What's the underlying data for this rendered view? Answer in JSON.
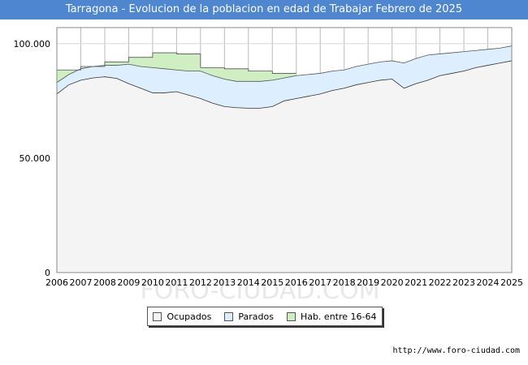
{
  "chart_data": {
    "type": "area",
    "title": "Tarragona - Evolucion de la poblacion en edad de Trabajar Febrero de 2025",
    "xlabel": "",
    "ylabel": "",
    "x_ticks": [
      "2006",
      "2007",
      "2008",
      "2009",
      "2010",
      "2011",
      "2012",
      "2013",
      "2014",
      "2015",
      "2016",
      "2017",
      "2018",
      "2019",
      "2020",
      "2021",
      "2022",
      "2023",
      "2024",
      "2025"
    ],
    "y_ticks": [
      {
        "value": 0,
        "label": "0"
      },
      {
        "value": 50000,
        "label": "50.000"
      },
      {
        "value": 100000,
        "label": "100.000"
      }
    ],
    "xlim": [
      2006,
      2025
    ],
    "ylim": [
      0,
      107000
    ],
    "grid": true,
    "legend_position": "bottom",
    "series": [
      {
        "name": "Ocupados",
        "color": "#f4f4f4",
        "line_color": "#333333",
        "x": [
          2006,
          2006.5,
          2007,
          2007.5,
          2008,
          2008.5,
          2009,
          2009.5,
          2010,
          2010.5,
          2011,
          2011.5,
          2012,
          2012.5,
          2013,
          2013.5,
          2014,
          2014.5,
          2015,
          2015.5,
          2016,
          2016.5,
          2017,
          2017.5,
          2018,
          2018.5,
          2019,
          2019.5,
          2020,
          2020.5,
          2021,
          2021.5,
          2022,
          2022.5,
          2023,
          2023.5,
          2024,
          2024.5,
          2025
        ],
        "values": [
          78000,
          82000,
          84000,
          85000,
          85500,
          84800,
          82500,
          80500,
          78500,
          78500,
          79000,
          77500,
          76000,
          74000,
          72500,
          72000,
          71800,
          71800,
          72500,
          75000,
          76000,
          77000,
          78000,
          79500,
          80500,
          82000,
          83000,
          84000,
          84500,
          80500,
          82500,
          84000,
          86000,
          87000,
          88000,
          89500,
          90500,
          91500,
          92500
        ]
      },
      {
        "name": "Parados",
        "color": "#ddeeff",
        "line_color": "#555555",
        "x": [
          2006,
          2006.5,
          2007,
          2007.5,
          2008,
          2008.5,
          2009,
          2009.5,
          2010,
          2010.5,
          2011,
          2011.5,
          2012,
          2012.5,
          2013,
          2013.5,
          2014,
          2014.5,
          2015,
          2015.5,
          2016,
          2016.5,
          2017,
          2017.5,
          2018,
          2018.5,
          2019,
          2019.5,
          2020,
          2020.5,
          2021,
          2021.5,
          2022,
          2022.5,
          2023,
          2023.5,
          2024,
          2024.5,
          2025
        ],
        "values": [
          83000,
          86500,
          89000,
          90000,
          90500,
          90500,
          91000,
          90000,
          89500,
          89000,
          88500,
          88000,
          88000,
          86000,
          84500,
          83500,
          83500,
          83500,
          84000,
          85000,
          86000,
          86500,
          87000,
          88000,
          88500,
          90000,
          91000,
          92000,
          92500,
          91500,
          93500,
          95000,
          95500,
          96000,
          96500,
          97000,
          97500,
          98000,
          99000
        ]
      },
      {
        "name": "Hab. entre 16-64",
        "color": "#cfeec2",
        "line_color": "#555555",
        "x": [
          2006,
          2007,
          2007,
          2008,
          2008,
          2009,
          2009,
          2010,
          2010,
          2011,
          2011,
          2012,
          2012,
          2013,
          2013,
          2014,
          2014,
          2015,
          2015,
          2016
        ],
        "values": [
          88500,
          88500,
          90000,
          90000,
          92000,
          92000,
          94000,
          94000,
          96000,
          96000,
          95500,
          95500,
          89500,
          89500,
          89000,
          89000,
          88000,
          88000,
          87000,
          87000
        ]
      }
    ]
  },
  "legend": {
    "items": [
      "Ocupados",
      "Parados",
      "Hab. entre 16-64"
    ]
  },
  "watermark": "FORO-CIUDAD.COM",
  "source": "http://www.foro-ciudad.com",
  "colors": {
    "title_bar": "#4f86d0",
    "ocupados_fill": "#f4f4f4",
    "parados_fill": "#ddeeff",
    "hab_fill": "#cfeec2"
  }
}
